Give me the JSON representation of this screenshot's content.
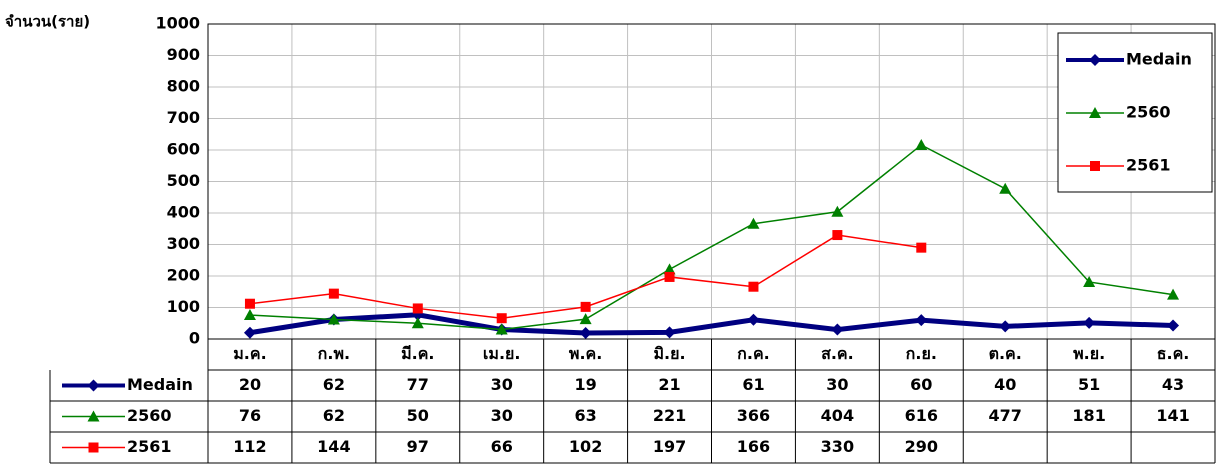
{
  "chart_data": {
    "type": "line",
    "y_axis_label": "จำนวน(ราย)",
    "categories": [
      "ม.ค.",
      "ก.พ.",
      "มี.ค.",
      "เม.ย.",
      "พ.ค.",
      "มิ.ย.",
      "ก.ค.",
      "ส.ค.",
      "ก.ย.",
      "ต.ค.",
      "พ.ย.",
      "ธ.ค."
    ],
    "series": [
      {
        "name": "Medain",
        "color": "#000080",
        "marker": "diamond",
        "values": [
          20,
          62,
          77,
          30,
          19,
          21,
          61,
          30,
          60,
          40,
          51,
          43
        ]
      },
      {
        "name": "2560",
        "color": "#008000",
        "marker": "triangle",
        "values": [
          76,
          62,
          50,
          30,
          63,
          221,
          366,
          404,
          616,
          477,
          181,
          141
        ]
      },
      {
        "name": "2561",
        "color": "#ff0000",
        "marker": "square",
        "values": [
          112,
          144,
          97,
          66,
          102,
          197,
          166,
          330,
          290,
          null,
          null,
          null
        ]
      }
    ],
    "ylim": [
      0,
      1000
    ],
    "yticks": [
      0,
      100,
      200,
      300,
      400,
      500,
      600,
      700,
      800,
      900,
      1000
    ],
    "grid": true,
    "legend": "upper right",
    "data_table": true
  }
}
